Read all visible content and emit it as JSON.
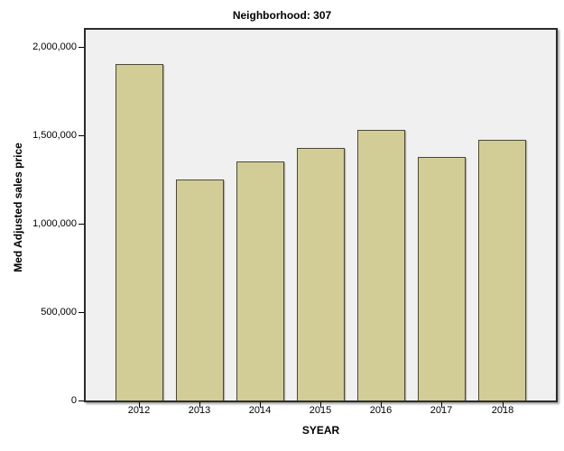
{
  "chart_data": {
    "type": "bar",
    "title": "Neighborhood: 307",
    "xlabel": "SYEAR",
    "ylabel": "Med Adjusted sales price",
    "categories": [
      "2012",
      "2013",
      "2014",
      "2015",
      "2016",
      "2017",
      "2018"
    ],
    "values": [
      1905000,
      1250000,
      1350000,
      1430000,
      1530000,
      1380000,
      1475000
    ],
    "ylim": [
      0,
      2000000
    ],
    "y_ticks": [
      {
        "value": 0,
        "label": "0"
      },
      {
        "value": 500000,
        "label": "500,000"
      },
      {
        "value": 1000000,
        "label": "1,000,000"
      },
      {
        "value": 1500000,
        "label": "1,500,000"
      },
      {
        "value": 2000000,
        "label": "2,000,000"
      }
    ],
    "grid": false,
    "legend": false,
    "colors": {
      "bar_fill": "#d2cd96",
      "bar_border": "#4a4936",
      "plot_background": "#f0f0f0",
      "frame": "#2b2b2b",
      "page_background": "#ffffff",
      "text": "#000000"
    }
  }
}
